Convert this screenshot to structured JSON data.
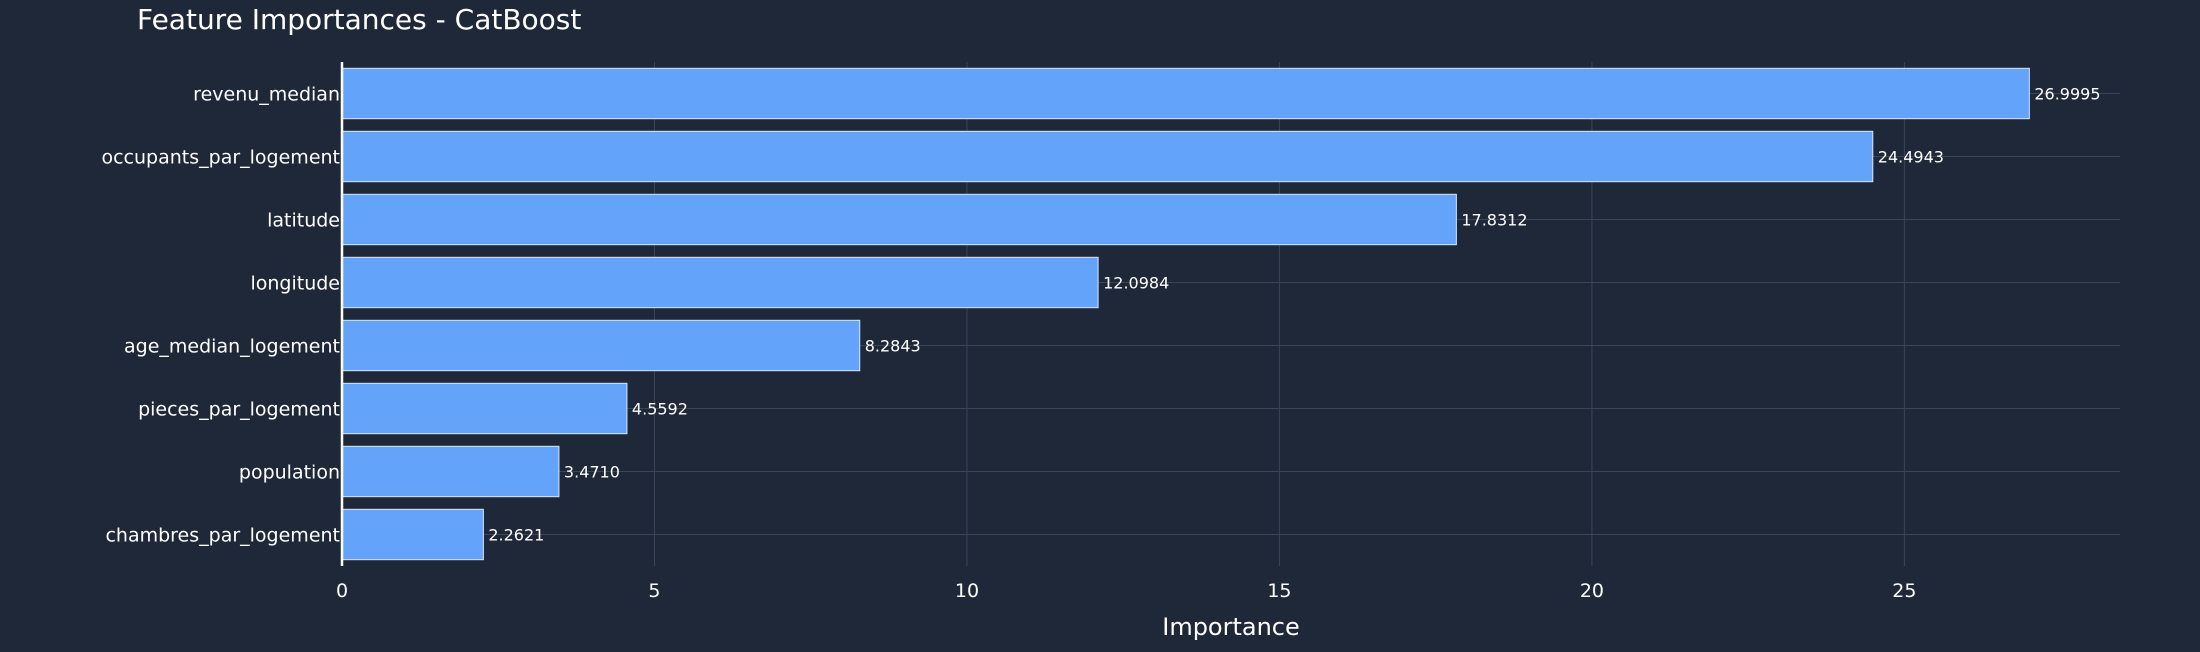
{
  "chart_data": {
    "type": "bar",
    "orientation": "horizontal",
    "title": "Feature Importances - CatBoost",
    "xlabel": "Importance",
    "ylabel": "",
    "categories": [
      "revenu_median",
      "occupants_par_logement",
      "latitude",
      "longitude",
      "age_median_logement",
      "pieces_par_logement",
      "population",
      "chambres_par_logement"
    ],
    "values": [
      26.9995,
      24.4943,
      17.8312,
      12.0984,
      8.2843,
      4.5592,
      3.471,
      2.2621
    ],
    "data_labels": [
      "26.9995",
      "24.4943",
      "17.8312",
      "12.0984",
      "8.2843",
      "4.5592",
      "3.4710",
      "2.2621"
    ],
    "xlim": [
      0,
      28.45
    ],
    "xticks": [
      0,
      5,
      10,
      15,
      20,
      25
    ],
    "xtick_labels": [
      "0",
      "5",
      "10",
      "15",
      "20",
      "25"
    ],
    "grid": true,
    "colors": {
      "background": "#1f2839",
      "bar": "#63a4fa",
      "bar_outline": "#d8e6fb",
      "grid": "#3a4558",
      "text": "#ffffff"
    }
  }
}
